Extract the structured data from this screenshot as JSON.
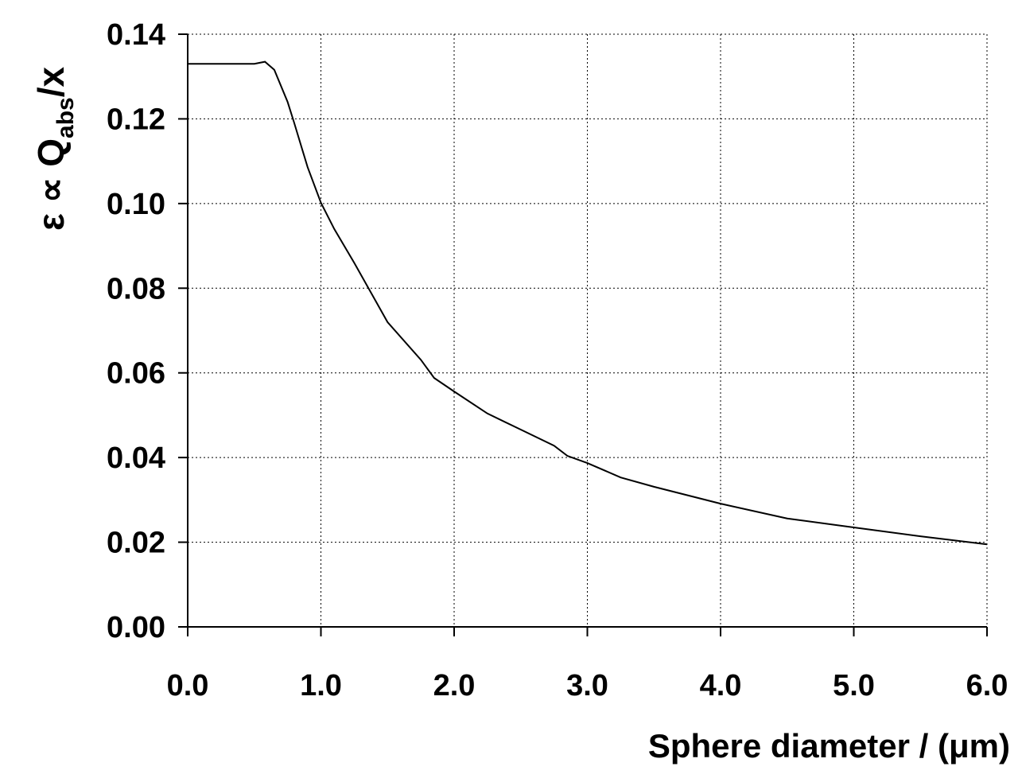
{
  "chart_data": {
    "type": "line",
    "xlabel": "Sphere diameter / (μm)",
    "ylabel": {
      "pre": "ε ∝ Q",
      "sub": "abs",
      "post": "/x"
    },
    "x": [
      0,
      0.5,
      0.58,
      0.65,
      0.75,
      0.8,
      0.9,
      1.0,
      1.1,
      1.25,
      1.5,
      1.75,
      1.85,
      2.0,
      2.25,
      2.5,
      2.75,
      2.85,
      3.0,
      3.25,
      3.5,
      4.0,
      4.5,
      5.0,
      5.5,
      6.0
    ],
    "series": [
      {
        "color": "#000000",
        "values": [
          0.133,
          0.133,
          0.1335,
          0.1316,
          0.124,
          0.119,
          0.1086,
          0.1002,
          0.094,
          0.086,
          0.072,
          0.0631,
          0.0588,
          0.0556,
          0.0504,
          0.0466,
          0.0428,
          0.0404,
          0.0387,
          0.0353,
          0.0331,
          0.0291,
          0.0256,
          0.0235,
          0.0214,
          0.0195
        ]
      }
    ],
    "xlim": [
      0,
      6
    ],
    "ylim": [
      0,
      0.14
    ],
    "xticks": [
      {
        "value": 0,
        "label": "0.0"
      },
      {
        "value": 1,
        "label": "1.0"
      },
      {
        "value": 2,
        "label": "2.0"
      },
      {
        "value": 3,
        "label": "3.0"
      },
      {
        "value": 4,
        "label": "4.0"
      },
      {
        "value": 5,
        "label": "5.0"
      },
      {
        "value": 6,
        "label": "6.0"
      }
    ],
    "yticks": [
      {
        "value": 0,
        "label": "0.00"
      },
      {
        "value": 0.02,
        "label": "0.02"
      },
      {
        "value": 0.04,
        "label": "0.04"
      },
      {
        "value": 0.06,
        "label": "0.06"
      },
      {
        "value": 0.08,
        "label": "0.08"
      },
      {
        "value": 0.1,
        "label": "0.10"
      },
      {
        "value": 0.12,
        "label": "0.12"
      },
      {
        "value": 0.14,
        "label": "0.14"
      }
    ],
    "grid": true
  }
}
